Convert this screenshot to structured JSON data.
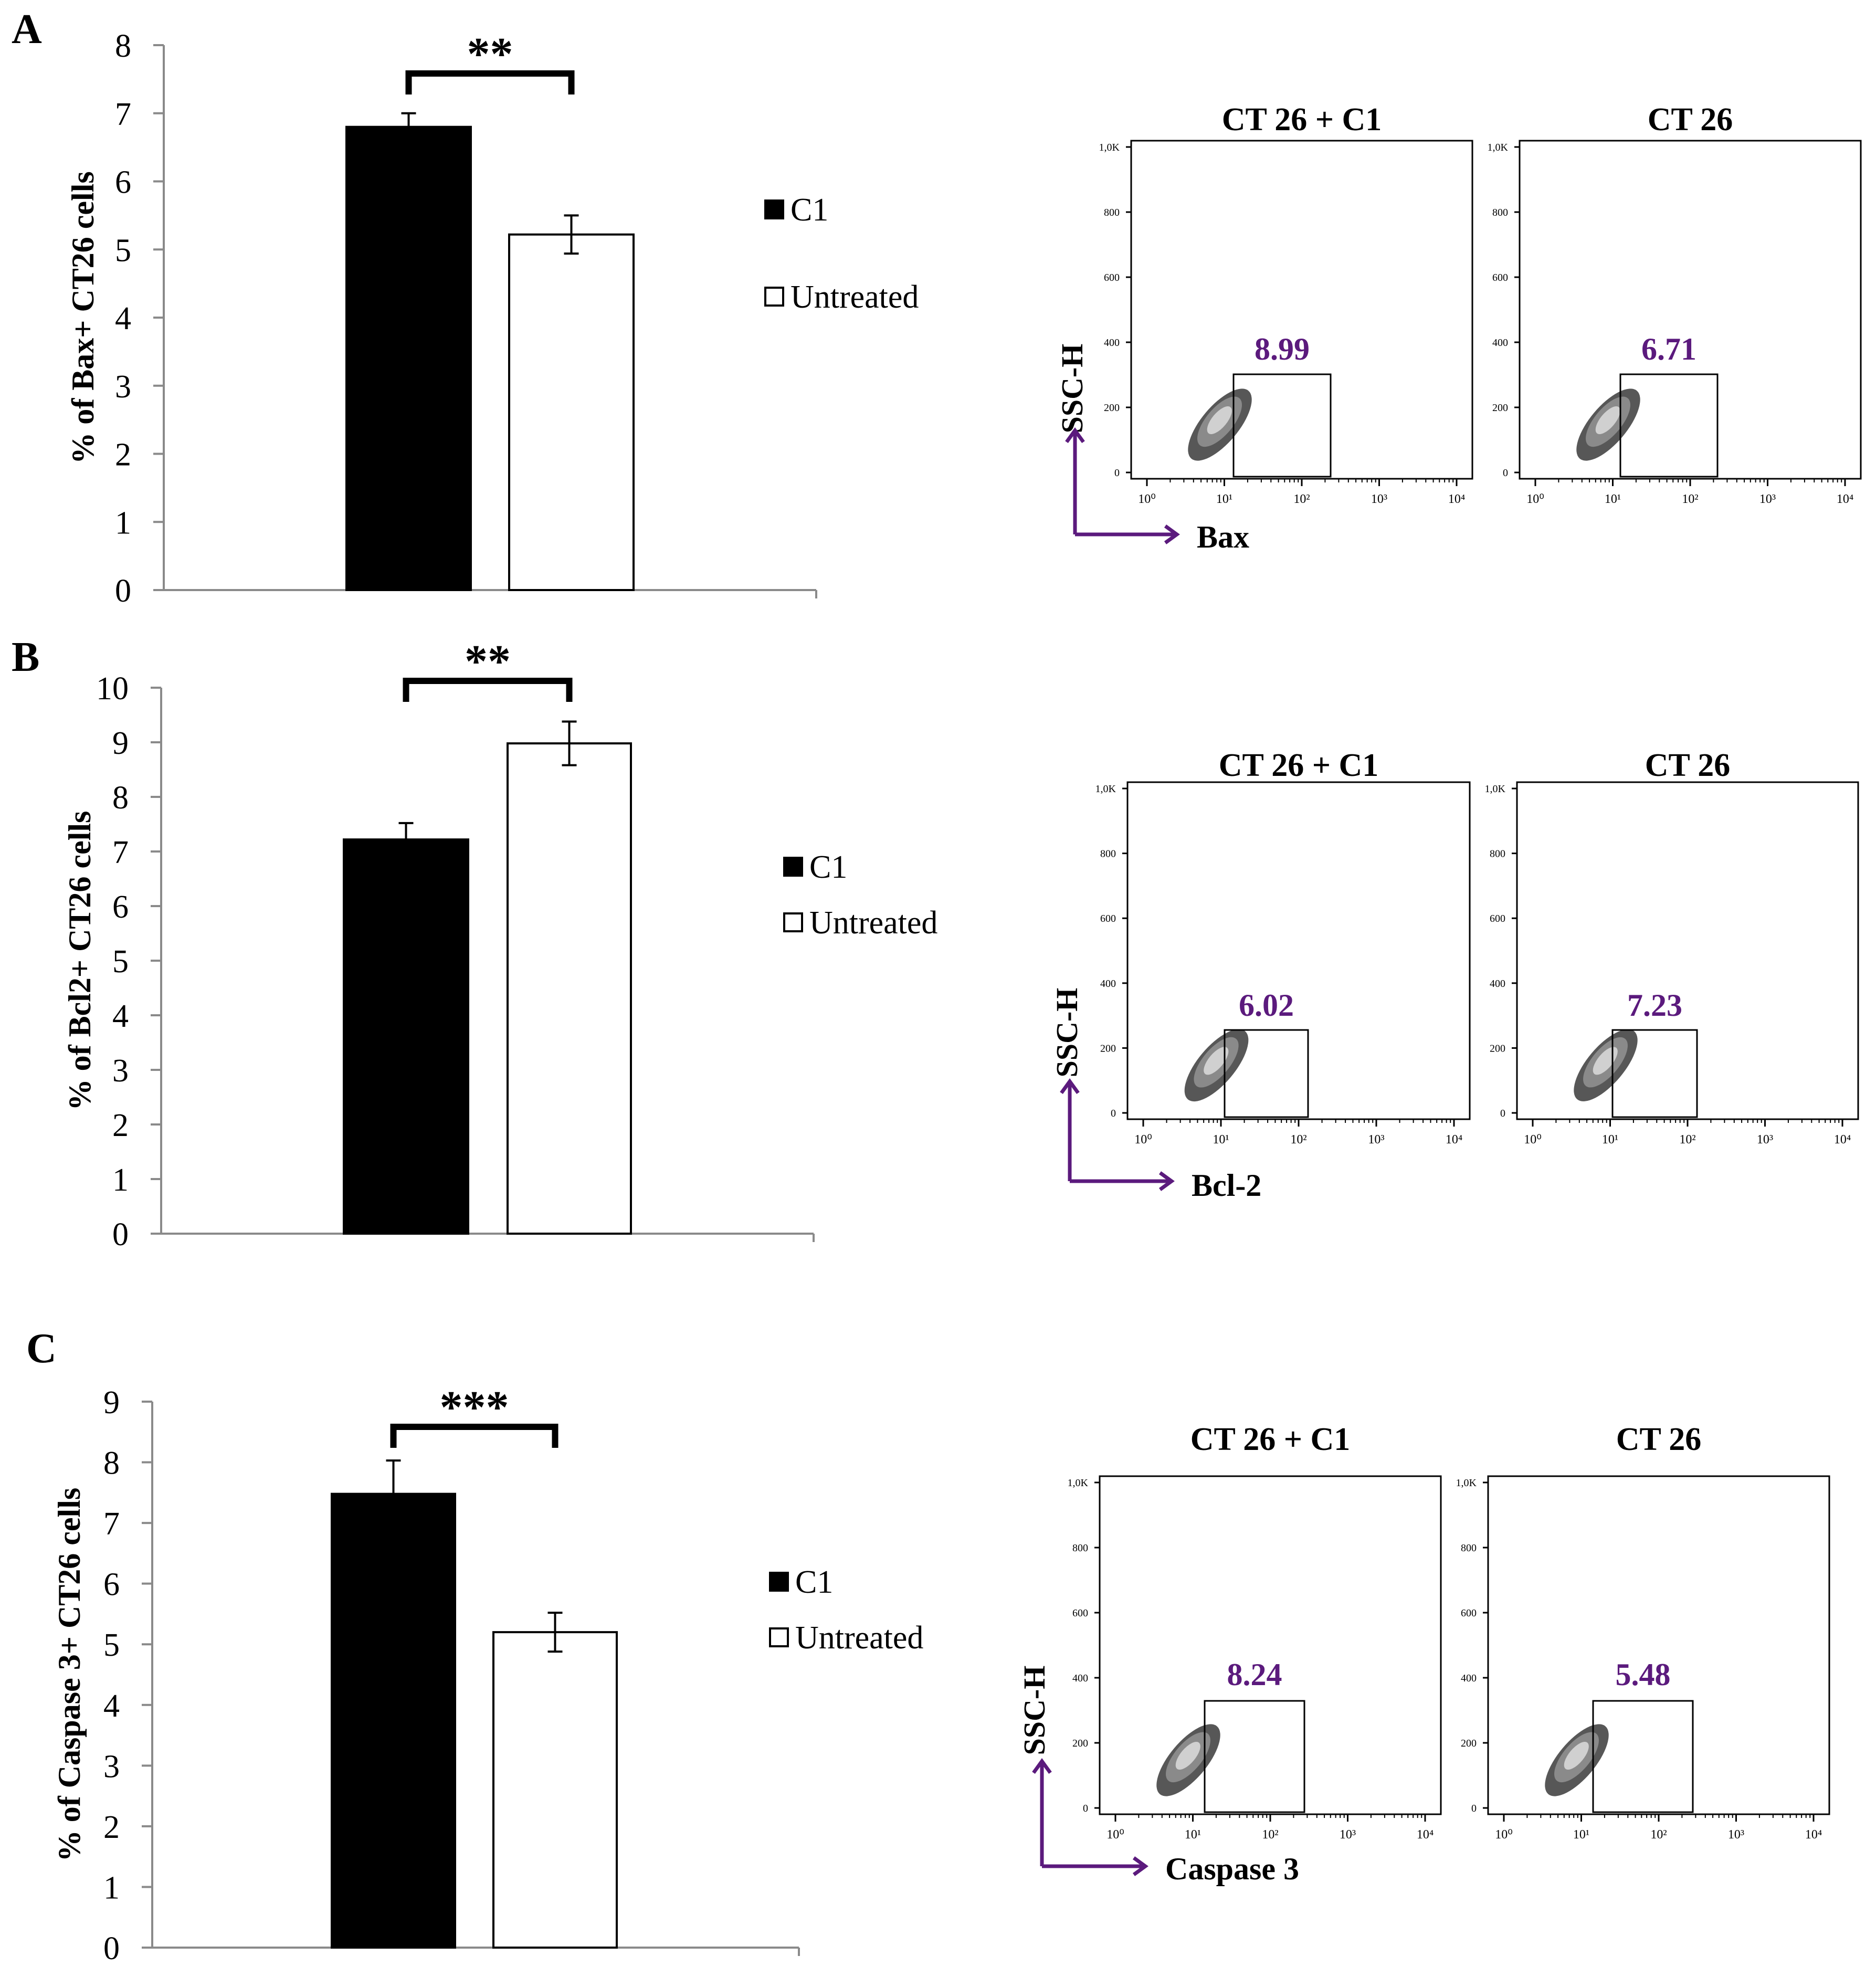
{
  "figure": {
    "legend_labels": [
      "C1",
      "Untreated"
    ],
    "colors": {
      "c1_bar": "#000000",
      "untreated_bar": "#ffffff",
      "accent": "#5b1a7d",
      "outline": "#000000"
    }
  },
  "panels": [
    {
      "letter": "A",
      "bar_chart": {
        "type": "bar",
        "ylabel": "% of Bax+ CT26 cells",
        "ylim": [
          0,
          8
        ],
        "yticks": [
          "0",
          "1",
          "2",
          "3",
          "4",
          "5",
          "6",
          "7",
          "8"
        ],
        "series": [
          {
            "name": "C1",
            "value": 6.8,
            "error": 0.2
          },
          {
            "name": "Untreated",
            "value": 5.22,
            "error": 0.28
          }
        ],
        "significance": "**"
      },
      "flow": {
        "titles": [
          "CT 26 + C1",
          "CT 26"
        ],
        "gate_values": [
          "8.99",
          "6.71"
        ],
        "y_axis_label": "SSC-H",
        "x_axis_label": "Bax",
        "y_ticks": [
          "0",
          "200",
          "400",
          "600",
          "800",
          "1,0K"
        ],
        "x_ticks": [
          "10⁰",
          "10¹",
          "10²",
          "10³",
          "10⁴"
        ]
      }
    },
    {
      "letter": "B",
      "bar_chart": {
        "type": "bar",
        "ylabel": "% of Bcl2+ CT26 cells",
        "ylim": [
          0,
          10
        ],
        "yticks": [
          "0",
          "1",
          "2",
          "3",
          "4",
          "5",
          "6",
          "7",
          "8",
          "9",
          "10"
        ],
        "series": [
          {
            "name": "C1",
            "value": 7.22,
            "error": 0.3
          },
          {
            "name": "Untreated",
            "value": 8.98,
            "error": 0.4
          }
        ],
        "significance": "**"
      },
      "flow": {
        "titles": [
          "CT 26 + C1",
          "CT 26"
        ],
        "gate_values": [
          "6.02",
          "7.23"
        ],
        "y_axis_label": "SSC-H",
        "x_axis_label": "Bcl-2",
        "y_ticks": [
          "0",
          "200",
          "400",
          "600",
          "800",
          "1,0K"
        ],
        "x_ticks": [
          "10⁰",
          "10¹",
          "10²",
          "10³",
          "10⁴"
        ]
      }
    },
    {
      "letter": "C",
      "bar_chart": {
        "type": "bar",
        "ylabel": "% of Caspase 3+ CT26 cells",
        "ylim": [
          0,
          9
        ],
        "yticks": [
          "0",
          "1",
          "2",
          "3",
          "4",
          "5",
          "6",
          "7",
          "8",
          "9"
        ],
        "series": [
          {
            "name": "C1",
            "value": 7.48,
            "error": 0.55
          },
          {
            "name": "Untreated",
            "value": 5.2,
            "error": 0.32
          }
        ],
        "significance": "***"
      },
      "flow": {
        "titles": [
          "CT 26 + C1",
          "CT 26"
        ],
        "gate_values": [
          "8.24",
          "5.48"
        ],
        "y_axis_label": "SSC-H",
        "x_axis_label": "Caspase 3",
        "y_ticks": [
          "0",
          "200",
          "400",
          "600",
          "800",
          "1,0K"
        ],
        "x_ticks": [
          "10⁰",
          "10¹",
          "10²",
          "10³",
          "10⁴"
        ]
      }
    }
  ],
  "chart_data": [
    {
      "type": "bar",
      "categories": [
        "C1",
        "Untreated"
      ],
      "values": [
        6.8,
        5.22
      ],
      "errors": [
        0.2,
        0.28
      ],
      "title": "",
      "xlabel": "",
      "ylabel": "% of Bax+ CT26 cells",
      "ylim": [
        0,
        8
      ],
      "annotation": "**"
    },
    {
      "type": "bar",
      "categories": [
        "C1",
        "Untreated"
      ],
      "values": [
        7.22,
        8.98
      ],
      "errors": [
        0.3,
        0.4
      ],
      "title": "",
      "xlabel": "",
      "ylabel": "% of Bcl2+ CT26 cells",
      "ylim": [
        0,
        10
      ],
      "annotation": "**"
    },
    {
      "type": "bar",
      "categories": [
        "C1",
        "Untreated"
      ],
      "values": [
        7.48,
        5.2
      ],
      "errors": [
        0.55,
        0.32
      ],
      "title": "",
      "xlabel": "",
      "ylabel": "% of Caspase 3+ CT26 cells",
      "ylim": [
        0,
        9
      ],
      "annotation": "***"
    }
  ]
}
